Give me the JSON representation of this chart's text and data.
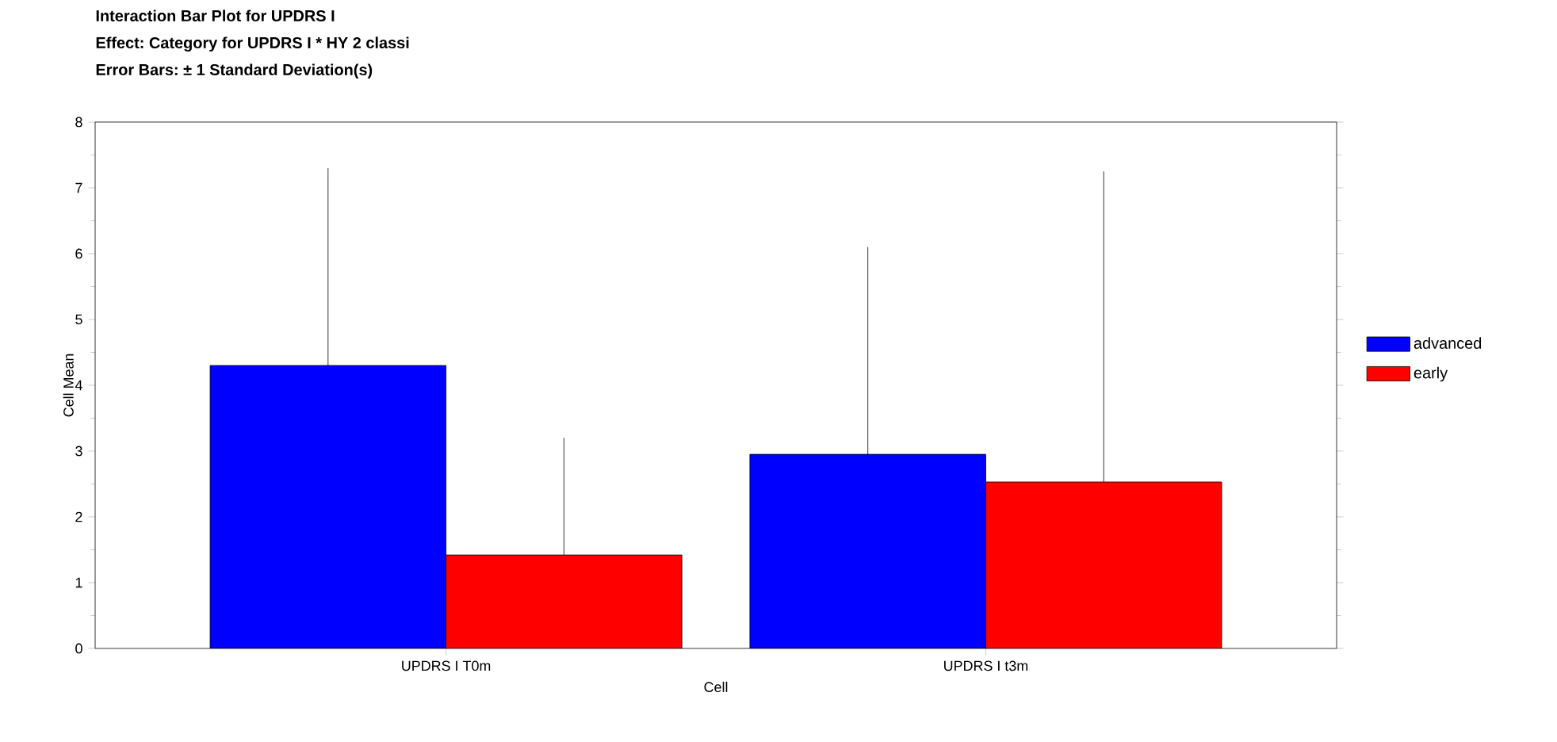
{
  "chart_data": {
    "type": "bar",
    "title": "Interaction Bar Plot for UPDRS I",
    "subtitle": "Effect: Category for UPDRS I * HY 2 classi",
    "annotations": [
      "Error Bars: ± 1 Standard Deviation(s)"
    ],
    "xlabel": "Cell",
    "ylabel": "Cell Mean",
    "categories": [
      "UPDRS I T0m",
      "UPDRS I t3m"
    ],
    "series": [
      {
        "name": "advanced",
        "color": "#0000ff",
        "values": [
          4.3,
          2.95
        ],
        "errors": [
          [
            4.3,
            7.3
          ],
          [
            2.95,
            6.1
          ]
        ]
      },
      {
        "name": "early",
        "color": "#ff0000",
        "values": [
          1.42,
          2.53
        ],
        "errors": [
          [
            1.42,
            3.2
          ],
          [
            2.53,
            7.25
          ]
        ]
      }
    ],
    "ylim": [
      0,
      8
    ],
    "yticks": [
      0,
      1,
      2,
      3,
      4,
      5,
      6,
      7,
      8
    ],
    "grid": false,
    "legend": "right"
  }
}
